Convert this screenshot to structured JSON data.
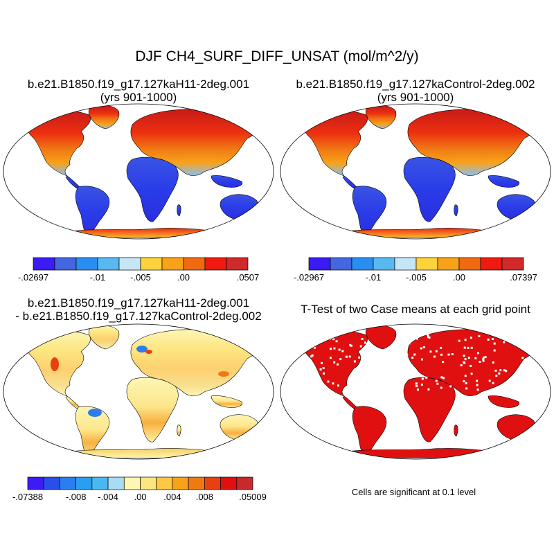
{
  "figure": {
    "title": "DJF CH4_SURF_DIFF_UNSAT (mol/m^2/y)"
  },
  "panels": [
    {
      "title_line1": "b.e21.B1850.f19_g17.127kaH11-2deg.001",
      "title_line2": "(yrs 901-1000)",
      "scheme": "case",
      "colorbar": {
        "colors": [
          "#3b1cf5",
          "#4466e0",
          "#2a8ef0",
          "#5ab8f0",
          "#c5e6f5",
          "#fdd23a",
          "#f8a21a",
          "#ef6a10",
          "#f01a10",
          "#d02a2a"
        ],
        "labels": [
          {
            "i": 0,
            "t": "-.02697"
          },
          {
            "i": 3,
            "t": "-.01"
          },
          {
            "i": 5,
            "t": "-.005"
          },
          {
            "i": 7,
            "t": ".00"
          },
          {
            "i": 10,
            "t": ".0507"
          }
        ]
      }
    },
    {
      "title_line1": "b.e21.B1850.f19_g17.127kaControl-2deg.002",
      "title_line2": "(yrs 901-1000)",
      "scheme": "case",
      "colorbar": {
        "colors": [
          "#3b1cf5",
          "#4466e0",
          "#2a8ef0",
          "#5ab8f0",
          "#c5e6f5",
          "#fdd23a",
          "#f8a21a",
          "#ef6a10",
          "#f01a10",
          "#d02a2a"
        ],
        "labels": [
          {
            "i": 0,
            "t": "-.02967"
          },
          {
            "i": 3,
            "t": "-.01"
          },
          {
            "i": 5,
            "t": "-.005"
          },
          {
            "i": 7,
            "t": ".00"
          },
          {
            "i": 10,
            "t": ".07397"
          }
        ]
      }
    },
    {
      "title_line1": "b.e21.B1850.f19_g17.127kaH11-2deg.001",
      "title_line2": "- b.e21.B1850.f19_g17.127kaControl-2deg.002",
      "scheme": "diff",
      "colorbar": {
        "colors": [
          "#3b1cf5",
          "#2a4ee8",
          "#2a7ef0",
          "#2a9ef0",
          "#4ab8f0",
          "#a8dcf5",
          "#fdf6b5",
          "#fde680",
          "#fdc845",
          "#f8a21a",
          "#f07a10",
          "#e84010",
          "#e01010",
          "#c82a2a"
        ],
        "labels": [
          {
            "i": 0,
            "t": "-.07388"
          },
          {
            "i": 3,
            "t": "-.008"
          },
          {
            "i": 5,
            "t": "-.004"
          },
          {
            "i": 7,
            "t": ".00"
          },
          {
            "i": 9,
            "t": ".004"
          },
          {
            "i": 11,
            "t": ".008"
          },
          {
            "i": 14,
            "t": ".05009"
          }
        ]
      }
    },
    {
      "title_line1": "T-Test of two Case means at each grid point",
      "title_line2": "",
      "scheme": "ttest",
      "footnote": "Cells are significant at 0.1 level"
    }
  ],
  "colors": {
    "land_cold": "#2a3ce8",
    "land_tropic": "#4a7fe6",
    "land_mid": "#f8a21a",
    "land_hot": "#ec2a10",
    "land_pale": "#fdf6b5",
    "ttest": "#e01010"
  }
}
